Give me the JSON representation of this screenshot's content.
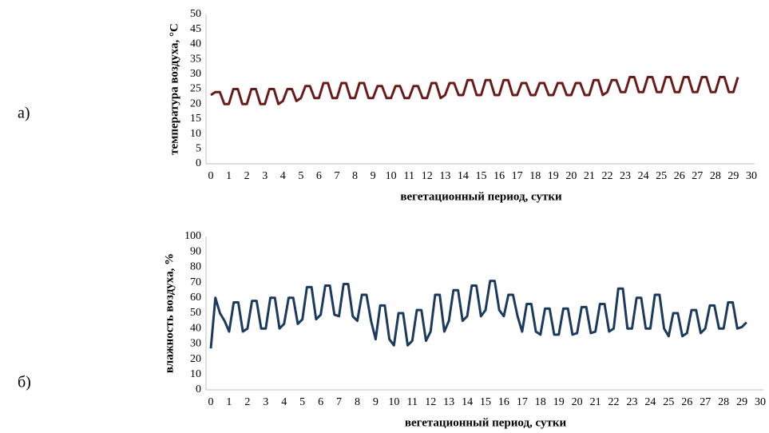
{
  "chart_data": [
    {
      "type": "line",
      "panel_label": "а)",
      "xlabel": "вегетационный период, сутки",
      "ylabel": "температура воздуха, °С",
      "xlim": [
        0,
        30
      ],
      "xticks": [
        0,
        1,
        2,
        3,
        4,
        5,
        6,
        7,
        8,
        9,
        10,
        11,
        12,
        13,
        14,
        15,
        16,
        17,
        18,
        19,
        20,
        21,
        22,
        23,
        24,
        25,
        26,
        27,
        28,
        29,
        30
      ],
      "ylim": [
        0,
        50
      ],
      "yticks": [
        0,
        5,
        10,
        15,
        20,
        25,
        30,
        35,
        40,
        45,
        50
      ],
      "series": [
        {
          "color": "#6b1a1a",
          "x": [
            0,
            0.25,
            0.5,
            0.75,
            1,
            1.25,
            1.5,
            1.75,
            2,
            2.25,
            2.5,
            2.75,
            3,
            3.25,
            3.5,
            3.75,
            4,
            4.25,
            4.5,
            4.75,
            5,
            5.25,
            5.5,
            5.75,
            6,
            6.25,
            6.5,
            6.75,
            7,
            7.25,
            7.5,
            7.75,
            8,
            8.25,
            8.5,
            8.75,
            9,
            9.25,
            9.5,
            9.75,
            10,
            10.25,
            10.5,
            10.75,
            11,
            11.25,
            11.5,
            11.75,
            12,
            12.25,
            12.5,
            12.75,
            13,
            13.25,
            13.5,
            13.75,
            14,
            14.25,
            14.5,
            14.75,
            15,
            15.25,
            15.5,
            15.75,
            16,
            16.25,
            16.5,
            16.75,
            17,
            17.25,
            17.5,
            17.75,
            18,
            18.25,
            18.5,
            18.75,
            19,
            19.25,
            19.5,
            19.75,
            20,
            20.25,
            20.5,
            20.75,
            21,
            21.25,
            21.5,
            21.75,
            22,
            22.25,
            22.5,
            22.75,
            23,
            23.25,
            23.5,
            23.75,
            24,
            24.25,
            24.5,
            24.75,
            25,
            25.25,
            25.5,
            25.75,
            26,
            26.25,
            26.5,
            26.75,
            27,
            27.25,
            27.5,
            27.75,
            28,
            28.25,
            28.5,
            28.75,
            29,
            29.25
          ],
          "values": [
            23,
            24,
            24,
            20,
            20,
            25,
            25,
            20,
            20,
            25,
            25,
            20,
            20,
            25,
            25,
            20,
            21,
            25,
            25,
            21,
            22,
            26,
            26,
            22,
            22,
            27,
            27,
            22,
            22,
            27,
            27,
            22,
            22,
            27,
            27,
            22,
            22,
            26,
            26,
            22,
            22,
            26,
            26,
            22,
            22,
            26,
            26,
            22,
            22,
            27,
            27,
            22,
            23,
            27,
            27,
            23,
            23,
            28,
            28,
            23,
            23,
            28,
            28,
            23,
            23,
            28,
            28,
            23,
            23,
            27,
            27,
            23,
            23,
            27,
            27,
            23,
            23,
            27,
            27,
            23,
            23,
            27,
            27,
            23,
            23,
            28,
            28,
            23,
            24,
            28,
            28,
            24,
            24,
            29,
            29,
            24,
            24,
            29,
            29,
            24,
            24,
            29,
            29,
            24,
            24,
            29,
            29,
            24,
            24,
            29,
            29,
            24,
            24,
            29,
            29,
            24,
            24,
            29
          ]
        }
      ]
    },
    {
      "type": "line",
      "panel_label": "б)",
      "xlabel": "вегетационный период, сутки",
      "ylabel": "влажность воздуха, %",
      "xlim": [
        0,
        30
      ],
      "xticks": [
        0,
        1,
        2,
        3,
        4,
        5,
        6,
        7,
        8,
        9,
        10,
        11,
        12,
        13,
        14,
        15,
        16,
        17,
        18,
        19,
        20,
        21,
        22,
        23,
        24,
        25,
        26,
        27,
        28,
        29,
        30
      ],
      "ylim": [
        0,
        100
      ],
      "yticks": [
        0,
        10,
        20,
        30,
        40,
        50,
        60,
        70,
        80,
        90,
        100
      ],
      "series": [
        {
          "color": "#1c3a5e",
          "x": [
            0,
            0.25,
            0.5,
            0.75,
            1,
            1.25,
            1.5,
            1.75,
            2,
            2.25,
            2.5,
            2.75,
            3,
            3.25,
            3.5,
            3.75,
            4,
            4.25,
            4.5,
            4.75,
            5,
            5.25,
            5.5,
            5.75,
            6,
            6.25,
            6.5,
            6.75,
            7,
            7.25,
            7.5,
            7.75,
            8,
            8.25,
            8.5,
            8.75,
            9,
            9.25,
            9.5,
            9.75,
            10,
            10.25,
            10.5,
            10.75,
            11,
            11.25,
            11.5,
            11.75,
            12,
            12.25,
            12.5,
            12.75,
            13,
            13.25,
            13.5,
            13.75,
            14,
            14.25,
            14.5,
            14.75,
            15,
            15.25,
            15.5,
            15.75,
            16,
            16.25,
            16.5,
            16.75,
            17,
            17.25,
            17.5,
            17.75,
            18,
            18.25,
            18.5,
            18.75,
            19,
            19.25,
            19.5,
            19.75,
            20,
            20.25,
            20.5,
            20.75,
            21,
            21.25,
            21.5,
            21.75,
            22,
            22.25,
            22.5,
            22.75,
            23,
            23.25,
            23.5,
            23.75,
            24,
            24.25,
            24.5,
            24.75,
            25,
            25.25,
            25.5,
            25.75,
            26,
            26.25,
            26.5,
            26.75,
            27,
            27.25,
            27.5,
            27.75,
            28,
            28.25,
            28.5,
            28.75,
            29,
            29.25
          ],
          "values": [
            27,
            60,
            50,
            45,
            38,
            57,
            57,
            38,
            40,
            58,
            58,
            40,
            40,
            60,
            60,
            40,
            43,
            60,
            60,
            43,
            46,
            67,
            67,
            46,
            49,
            68,
            68,
            49,
            48,
            69,
            69,
            48,
            45,
            62,
            62,
            45,
            33,
            55,
            55,
            33,
            29,
            50,
            50,
            29,
            32,
            52,
            52,
            32,
            38,
            62,
            62,
            38,
            45,
            65,
            65,
            45,
            48,
            68,
            68,
            48,
            52,
            71,
            71,
            52,
            48,
            62,
            62,
            48,
            38,
            56,
            56,
            38,
            36,
            53,
            53,
            36,
            36,
            53,
            53,
            36,
            37,
            54,
            54,
            37,
            38,
            56,
            56,
            38,
            40,
            66,
            66,
            40,
            40,
            60,
            60,
            40,
            40,
            62,
            62,
            40,
            35,
            50,
            50,
            35,
            37,
            52,
            52,
            37,
            40,
            55,
            55,
            40,
            40,
            57,
            57,
            40,
            41,
            44
          ]
        }
      ]
    }
  ]
}
